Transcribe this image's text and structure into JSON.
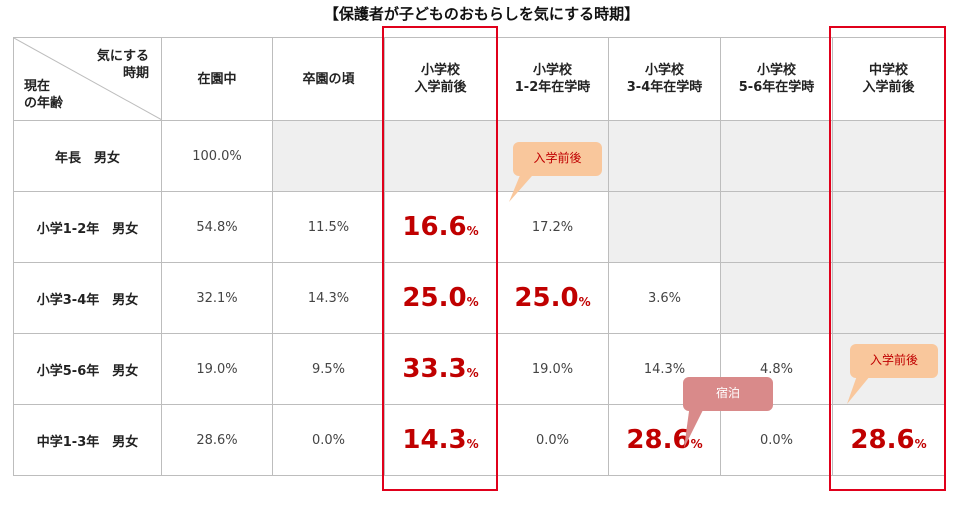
{
  "title": "【保護者が子どものおもらしを気にする時期】",
  "corner": {
    "top_label": "気にする\n時期",
    "left_label": "現在\nの年齢"
  },
  "columns": [
    "在園中",
    "卒園の頃",
    "小学校\n入学前後",
    "小学校\n1-2年在学時",
    "小学校\n3-4年在学時",
    "小学校\n5-6年在学時",
    "中学校\n入学前後"
  ],
  "rows": [
    {
      "label": "年長　男女",
      "cells": [
        "100.0%",
        "",
        "",
        "",
        "",
        "",
        ""
      ]
    },
    {
      "label": "小学1-2年　男女",
      "cells": [
        "54.8%",
        "11.5%",
        "16.6",
        "17.2%",
        "",
        "",
        ""
      ]
    },
    {
      "label": "小学3-4年　男女",
      "cells": [
        "32.1%",
        "14.3%",
        "25.0",
        "25.0",
        "3.6%",
        "",
        ""
      ]
    },
    {
      "label": "小学5-6年　男女",
      "cells": [
        "19.0%",
        "9.5%",
        "33.3",
        "19.0%",
        "14.3%",
        "4.8%",
        ""
      ]
    },
    {
      "label": "中学1-3年　男女",
      "cells": [
        "28.6%",
        "0.0%",
        "14.3",
        "0.0%",
        "28.6",
        "0.0%",
        "28.6"
      ]
    }
  ],
  "percent_unit": "%",
  "callouts": {
    "entrance_1": "入学前後",
    "entrance_2": "入学前後",
    "overnight": "宿泊"
  },
  "colors": {
    "highlight": "#e0001b",
    "big_value": "#c00000",
    "callout_orange": "#f9c79c",
    "callout_red": "#d98a8a",
    "gray_cell": "#efefef"
  }
}
